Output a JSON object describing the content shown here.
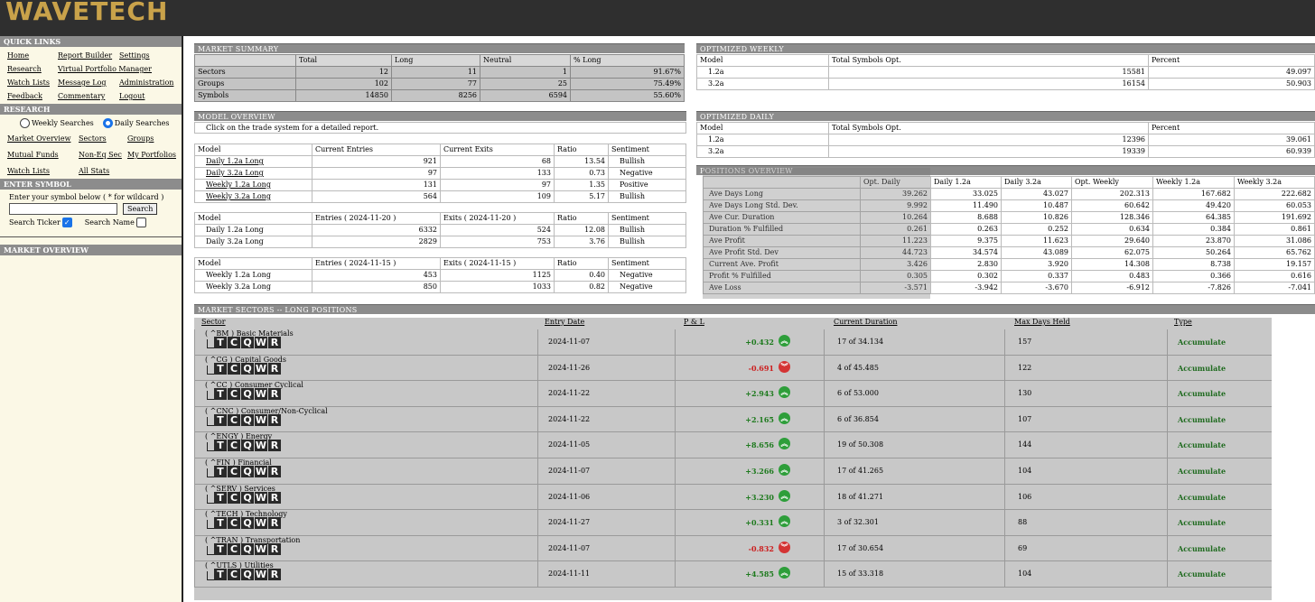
{
  "app": {
    "logo": "WAVETECH"
  },
  "sidebar": {
    "quick_links_title": "QUICK LINKS",
    "quick_links": [
      "Home",
      "Report Builder",
      "Settings",
      "Research",
      "Virtual Portfolio Manager",
      "",
      "Watch Lists",
      "Message Log",
      "Administration",
      "Feedback",
      "Commentary",
      "Logout"
    ],
    "research_title": "RESEARCH",
    "radio_weekly": "Weekly Searches",
    "radio_daily": "Daily Searches",
    "research_links": [
      "Market Overview",
      "Sectors",
      "Groups",
      "Mutual Funds",
      "Non-Eq Sec",
      "My Portfolios",
      "Watch Lists",
      "All Stats",
      ""
    ],
    "enter_symbol_title": "ENTER SYMBOL",
    "enter_symbol_label": "Enter your symbol below ( * for wildcard )",
    "search_button": "Search",
    "search_ticker_label": "Search Ticker",
    "search_name_label": "Search Name",
    "market_overview_title": "MARKET OVERVIEW"
  },
  "market_summary": {
    "title": "MARKET SUMMARY",
    "headers": [
      "",
      "Total",
      "Long",
      "Neutral",
      "% Long"
    ],
    "rows": [
      [
        "Sectors",
        "12",
        "11",
        "1",
        "91.67%"
      ],
      [
        "Groups",
        "102",
        "77",
        "25",
        "75.49%"
      ],
      [
        "Symbols",
        "14850",
        "8256",
        "6594",
        "55.60%"
      ]
    ]
  },
  "model_overview": {
    "title": "MODEL OVERVIEW",
    "instruction": "Click on the trade system for a detailed report.",
    "table1": {
      "headers": [
        "Model",
        "Current Entries",
        "Current Exits",
        "Ratio",
        "Sentiment"
      ],
      "rows": [
        [
          "Daily 1.2a Long",
          "921",
          "68",
          "13.54",
          "Bullish"
        ],
        [
          "Daily 3.2a Long",
          "97",
          "133",
          "0.73",
          "Negative"
        ],
        [
          "Weekly 1.2a Long",
          "131",
          "97",
          "1.35",
          "Positive"
        ],
        [
          "Weekly 3.2a Long",
          "564",
          "109",
          "5.17",
          "Bullish"
        ]
      ]
    },
    "table2": {
      "headers": [
        "Model",
        "Entries ( 2024-11-20 )",
        "Exits ( 2024-11-20 )",
        "Ratio",
        "Sentiment"
      ],
      "rows": [
        [
          "Daily 1.2a Long",
          "6332",
          "524",
          "12.08",
          "Bullish"
        ],
        [
          "Daily 3.2a Long",
          "2829",
          "753",
          "3.76",
          "Bullish"
        ]
      ]
    },
    "table3": {
      "headers": [
        "Model",
        "Entries ( 2024-11-15 )",
        "Exits ( 2024-11-15 )",
        "Ratio",
        "Sentiment"
      ],
      "rows": [
        [
          "Weekly 1.2a Long",
          "453",
          "1125",
          "0.40",
          "Negative"
        ],
        [
          "Weekly 3.2a Long",
          "850",
          "1033",
          "0.82",
          "Negative"
        ]
      ]
    }
  },
  "optimized_weekly": {
    "title": "OPTIMIZED WEEKLY",
    "headers": [
      "Model",
      "Total Symbols Opt.",
      "Percent"
    ],
    "rows": [
      [
        "1.2a",
        "15581",
        "49.097"
      ],
      [
        "3.2a",
        "16154",
        "50.903"
      ]
    ]
  },
  "optimized_daily": {
    "title": "OPTIMIZED DAILY",
    "headers": [
      "Model",
      "Total Symbols Opt.",
      "Percent"
    ],
    "rows": [
      [
        "1.2a",
        "12396",
        "39.061"
      ],
      [
        "3.2a",
        "19339",
        "60.939"
      ]
    ]
  },
  "positions_overview": {
    "title": "POSITIONS OVERVIEW",
    "headers": [
      "",
      "Opt. Daily",
      "Daily 1.2a",
      "Daily 3.2a",
      "Opt. Weekly",
      "Weekly 1.2a",
      "Weekly 3.2a"
    ],
    "rows": [
      [
        "Ave Days Long",
        "39.262",
        "33.025",
        "43.027",
        "202.313",
        "167.682",
        "222.682"
      ],
      [
        "Ave Days Long Std. Dev.",
        "9.992",
        "11.490",
        "10.487",
        "60.642",
        "49.420",
        "60.053"
      ],
      [
        "Ave Cur. Duration",
        "10.264",
        "8.688",
        "10.826",
        "128.346",
        "64.385",
        "191.692"
      ],
      [
        "Duration % Fulfilled",
        "0.261",
        "0.263",
        "0.252",
        "0.634",
        "0.384",
        "0.861"
      ],
      [
        "Ave Profit",
        "11.223",
        "9.375",
        "11.623",
        "29.640",
        "23.870",
        "31.086"
      ],
      [
        "Ave Profit Std. Dev",
        "44.723",
        "34.574",
        "43.089",
        "62.075",
        "50.264",
        "65.762"
      ],
      [
        "Current Ave. Profit",
        "3.426",
        "2.830",
        "3.920",
        "14.308",
        "8.738",
        "19.157"
      ],
      [
        "Profit % Fulfilled",
        "0.305",
        "0.302",
        "0.337",
        "0.483",
        "0.366",
        "0.616"
      ],
      [
        "Ave Loss",
        "-3.571",
        "-3.942",
        "-3.670",
        "-6.912",
        "-7.826",
        "-7.041"
      ]
    ]
  },
  "market_sectors": {
    "title": "MARKET SECTORS -- LONG POSITIONS",
    "headers": [
      "Sector",
      "Entry Date",
      "P & L",
      "Current Duration",
      "Max Days Held",
      "Type"
    ],
    "tcqwr": [
      "T",
      "C",
      "Q",
      "W",
      "R"
    ],
    "rows": [
      {
        "name": "( ^BM ) Basic Materials",
        "date": "2024-11-07",
        "pl": "+0.432",
        "dir": "up",
        "duration": "17 of 34.134",
        "max": "157",
        "type": "Accumulate"
      },
      {
        "name": "( ^CG ) Capital Goods",
        "date": "2024-11-26",
        "pl": "-0.691",
        "dir": "down",
        "duration": "4 of 45.485",
        "max": "122",
        "type": "Accumulate"
      },
      {
        "name": "( ^CC ) Consumer Cyclical",
        "date": "2024-11-22",
        "pl": "+2.943",
        "dir": "up",
        "duration": "6 of 53.000",
        "max": "130",
        "type": "Accumulate"
      },
      {
        "name": "( ^CNC ) Consumer/Non-Cyclical",
        "date": "2024-11-22",
        "pl": "+2.165",
        "dir": "up",
        "duration": "6 of 36.854",
        "max": "107",
        "type": "Accumulate"
      },
      {
        "name": "( ^ENGY ) Energy",
        "date": "2024-11-05",
        "pl": "+8.656",
        "dir": "up",
        "duration": "19 of 50.308",
        "max": "144",
        "type": "Accumulate"
      },
      {
        "name": "( ^FIN ) Financial",
        "date": "2024-11-07",
        "pl": "+3.266",
        "dir": "up",
        "duration": "17 of 41.265",
        "max": "104",
        "type": "Accumulate"
      },
      {
        "name": "( ^SERV ) Services",
        "date": "2024-11-06",
        "pl": "+3.230",
        "dir": "up",
        "duration": "18 of 41.271",
        "max": "106",
        "type": "Accumulate"
      },
      {
        "name": "( ^TECH ) Technology",
        "date": "2024-11-27",
        "pl": "+0.331",
        "dir": "up",
        "duration": "3 of 32.301",
        "max": "88",
        "type": "Accumulate"
      },
      {
        "name": "( ^TRAN ) Transportation",
        "date": "2024-11-07",
        "pl": "-0.832",
        "dir": "down",
        "duration": "17 of 30.654",
        "max": "69",
        "type": "Accumulate"
      },
      {
        "name": "( ^UTLS ) Utilities",
        "date": "2024-11-11",
        "pl": "+4.585",
        "dir": "up",
        "duration": "15 of 33.318",
        "max": "104",
        "type": "Accumulate"
      }
    ]
  }
}
